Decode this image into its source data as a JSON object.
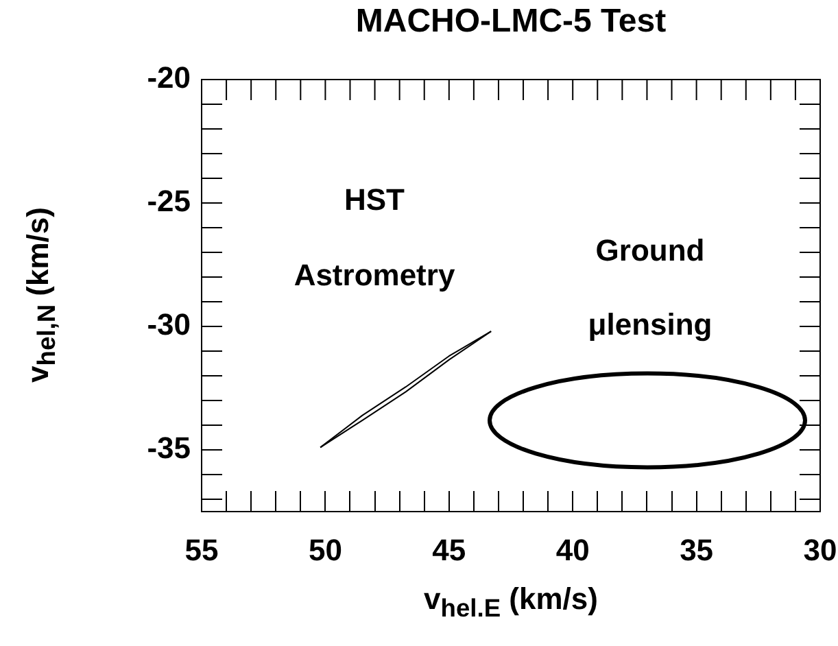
{
  "chart_data": {
    "type": "line",
    "title": "MACHO-LMC-5 Test",
    "xlabel": "v$_{hel.E}$ (km/s)",
    "ylabel": "v$_{hel,N}$ (km/s)",
    "xlim": [
      55,
      30
    ],
    "ylim": [
      -37.5,
      -20
    ],
    "xticks": [
      55,
      {
        "value": 54,
        "label": null
      },
      {
        "value": 53,
        "label": null
      },
      {
        "value": 52,
        "label": null
      },
      {
        "value": 51,
        "label": null
      },
      50,
      {
        "value": 49,
        "label": null
      },
      {
        "value": 48,
        "label": null
      },
      {
        "value": 47,
        "label": null
      },
      {
        "value": 46,
        "label": null
      },
      45,
      {
        "value": 44,
        "label": null
      },
      {
        "value": 43,
        "label": null
      },
      {
        "value": 42,
        "label": null
      },
      {
        "value": 41,
        "label": null
      },
      40,
      {
        "value": 39,
        "label": null
      },
      {
        "value": 38,
        "label": null
      },
      {
        "value": 37,
        "label": null
      },
      {
        "value": 36,
        "label": null
      },
      35,
      {
        "value": 34,
        "label": null
      },
      {
        "value": 33,
        "label": null
      },
      {
        "value": 32,
        "label": null
      },
      {
        "value": 31,
        "label": null
      },
      30
    ],
    "yticks": [
      {
        "value": -37,
        "label": null
      },
      {
        "value": -36,
        "label": null
      },
      -35,
      {
        "value": -34,
        "label": null
      },
      {
        "value": -33,
        "label": null
      },
      {
        "value": -32,
        "label": null
      },
      {
        "value": -31,
        "label": null
      },
      -30,
      {
        "value": -29,
        "label": null
      },
      {
        "value": -28,
        "label": null
      },
      {
        "value": -27,
        "label": null
      },
      {
        "value": -26,
        "label": null
      },
      -25,
      {
        "value": -24,
        "label": null
      },
      {
        "value": -23,
        "label": null
      },
      {
        "value": -22,
        "label": null
      },
      {
        "value": -21,
        "label": null
      },
      -20
    ],
    "grid": false,
    "legend": false,
    "marker": "none",
    "line_style": "solid",
    "series": [
      {
        "color": "#000000",
        "x": [
          50.2,
          48.5,
          46.75,
          45.0,
          43.3
        ],
        "values": [
          -34.9,
          -33.6,
          -32.45,
          -31.2,
          -30.2
        ]
      },
      {
        "color": "#000000",
        "x": [
          50.2,
          48.5,
          46.75,
          45.0,
          43.3
        ],
        "values": [
          -34.9,
          -33.8,
          -32.65,
          -31.35,
          -30.2
        ]
      }
    ],
    "annotations": [
      "HST",
      "Astrometry",
      "Ground",
      "μlensing"
    ]
  }
}
